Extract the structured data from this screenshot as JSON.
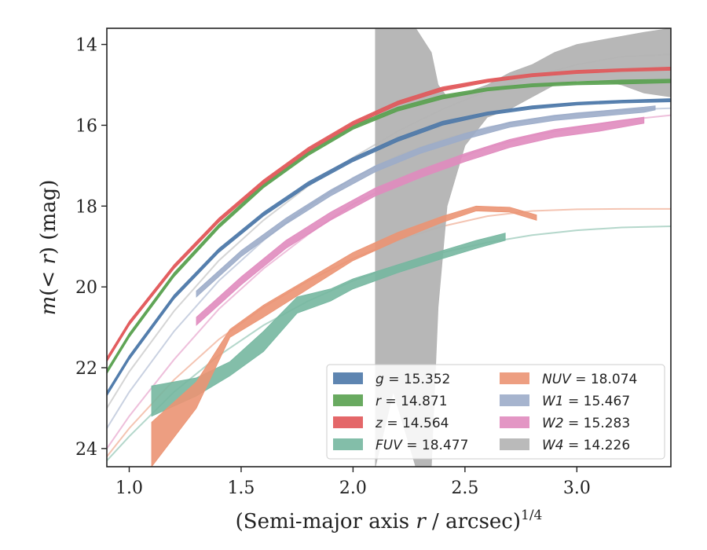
{
  "chart_data": {
    "type": "line",
    "xlabel": "(Semi-major axis r / arcsec)^{1/4}",
    "xlabel_parts": {
      "main": "(Semi-major axis ",
      "var": "r",
      "mid": " / arcsec)",
      "sup": "1/4"
    },
    "ylabel_parts": {
      "m": "m",
      "open": "(",
      "lt": "< ",
      "r": "r",
      "close": ")",
      "unit": " (mag)"
    },
    "xlim": [
      0.9,
      3.42
    ],
    "ylim": [
      24.45,
      13.6
    ],
    "y_inverted": true,
    "xticks": [
      1.0,
      1.5,
      2.0,
      2.5,
      3.0
    ],
    "xtick_labels": [
      "1.0",
      "1.5",
      "2.0",
      "2.5",
      "3.0"
    ],
    "yticks": [
      14,
      16,
      18,
      20,
      22,
      24
    ],
    "ytick_labels": [
      "14",
      "16",
      "18",
      "20",
      "22",
      "24"
    ],
    "grid": false,
    "legend_position": "lower-right",
    "legend_columns": 2,
    "series": [
      {
        "name": "g",
        "legend_label": "g = 15.352",
        "legend_var": "g",
        "legend_value": "15.352",
        "color": "#4C78A8",
        "model": [
          [
            0.9,
            22.65
          ],
          [
            1.0,
            21.75
          ],
          [
            1.2,
            20.25
          ],
          [
            1.4,
            19.1
          ],
          [
            1.6,
            18.2
          ],
          [
            1.8,
            17.45
          ],
          [
            2.0,
            16.85
          ],
          [
            2.2,
            16.35
          ],
          [
            2.4,
            15.95
          ],
          [
            2.6,
            15.7
          ],
          [
            2.8,
            15.55
          ],
          [
            3.0,
            15.45
          ],
          [
            3.2,
            15.4
          ],
          [
            3.42,
            15.37
          ]
        ],
        "band": [
          [
            0.9,
            22.6,
            22.7
          ],
          [
            1.0,
            21.7,
            21.8
          ],
          [
            1.2,
            20.2,
            20.3
          ],
          [
            1.4,
            19.05,
            19.15
          ],
          [
            1.6,
            18.15,
            18.25
          ],
          [
            1.8,
            17.4,
            17.5
          ],
          [
            2.0,
            16.8,
            16.9
          ],
          [
            2.2,
            16.3,
            16.4
          ],
          [
            2.4,
            15.9,
            16.0
          ],
          [
            2.6,
            15.67,
            15.75
          ],
          [
            2.8,
            15.52,
            15.6
          ],
          [
            3.0,
            15.43,
            15.5
          ],
          [
            3.2,
            15.38,
            15.45
          ],
          [
            3.42,
            15.34,
            15.42
          ]
        ]
      },
      {
        "name": "r",
        "legend_label": "r = 14.871",
        "legend_var": "r",
        "legend_value": "14.871",
        "color": "#59A14F",
        "model": [
          [
            0.9,
            22.1
          ],
          [
            1.0,
            21.2
          ],
          [
            1.2,
            19.7
          ],
          [
            1.4,
            18.5
          ],
          [
            1.6,
            17.5
          ],
          [
            1.8,
            16.7
          ],
          [
            2.0,
            16.05
          ],
          [
            2.2,
            15.6
          ],
          [
            2.4,
            15.3
          ],
          [
            2.6,
            15.1
          ],
          [
            2.8,
            15.0
          ],
          [
            3.0,
            14.95
          ],
          [
            3.2,
            14.92
          ],
          [
            3.42,
            14.9
          ]
        ],
        "band": [
          [
            0.9,
            22.05,
            22.15
          ],
          [
            1.0,
            21.15,
            21.25
          ],
          [
            1.2,
            19.65,
            19.75
          ],
          [
            1.4,
            18.45,
            18.55
          ],
          [
            1.6,
            17.45,
            17.55
          ],
          [
            1.8,
            16.65,
            16.75
          ],
          [
            2.0,
            16.0,
            16.1
          ],
          [
            2.2,
            15.55,
            15.65
          ],
          [
            2.4,
            15.25,
            15.35
          ],
          [
            2.6,
            15.07,
            15.15
          ],
          [
            2.8,
            14.97,
            15.05
          ],
          [
            3.0,
            14.92,
            15.0
          ],
          [
            3.2,
            14.88,
            14.98
          ],
          [
            3.42,
            14.86,
            14.95
          ]
        ]
      },
      {
        "name": "z",
        "legend_label": "z = 14.564",
        "legend_var": "z",
        "legend_value": "14.564",
        "color": "#E15759",
        "model": [
          [
            0.9,
            21.8
          ],
          [
            1.0,
            20.9
          ],
          [
            1.2,
            19.5
          ],
          [
            1.4,
            18.35
          ],
          [
            1.6,
            17.4
          ],
          [
            1.8,
            16.6
          ],
          [
            2.0,
            15.95
          ],
          [
            2.2,
            15.45
          ],
          [
            2.4,
            15.1
          ],
          [
            2.6,
            14.9
          ],
          [
            2.8,
            14.75
          ],
          [
            3.0,
            14.67
          ],
          [
            3.2,
            14.62
          ],
          [
            3.42,
            14.6
          ]
        ],
        "band": [
          [
            0.9,
            21.75,
            21.85
          ],
          [
            1.0,
            20.85,
            20.95
          ],
          [
            1.2,
            19.45,
            19.55
          ],
          [
            1.4,
            18.3,
            18.4
          ],
          [
            1.6,
            17.35,
            17.45
          ],
          [
            1.8,
            16.55,
            16.65
          ],
          [
            2.0,
            15.9,
            16.0
          ],
          [
            2.2,
            15.4,
            15.5
          ],
          [
            2.4,
            15.05,
            15.15
          ],
          [
            2.6,
            14.86,
            14.94
          ],
          [
            2.8,
            14.72,
            14.8
          ],
          [
            3.0,
            14.64,
            14.72
          ],
          [
            3.2,
            14.6,
            14.67
          ],
          [
            3.42,
            14.56,
            14.64
          ]
        ]
      },
      {
        "name": "FUV",
        "legend_label": "FUV = 18.477",
        "legend_var": "FUV",
        "legend_value": "18.477",
        "color": "#76B7A0",
        "model": [
          [
            0.9,
            24.3
          ],
          [
            1.0,
            23.7
          ],
          [
            1.2,
            22.6
          ],
          [
            1.4,
            21.7
          ],
          [
            1.6,
            20.95
          ],
          [
            1.8,
            20.35
          ],
          [
            2.0,
            19.85
          ],
          [
            2.2,
            19.45
          ],
          [
            2.4,
            19.15
          ],
          [
            2.6,
            18.9
          ],
          [
            2.8,
            18.72
          ],
          [
            3.0,
            18.6
          ],
          [
            3.2,
            18.53
          ],
          [
            3.42,
            18.5
          ]
        ],
        "band": [
          [
            1.1,
            22.45,
            23.2
          ],
          [
            1.3,
            22.25,
            22.7
          ],
          [
            1.45,
            21.85,
            22.2
          ],
          [
            1.6,
            21.1,
            21.6
          ],
          [
            1.75,
            20.25,
            20.65
          ],
          [
            1.9,
            20.05,
            20.35
          ],
          [
            2.0,
            19.8,
            20.05
          ],
          [
            2.2,
            19.45,
            19.65
          ],
          [
            2.4,
            19.1,
            19.3
          ],
          [
            2.55,
            18.85,
            19.05
          ],
          [
            2.68,
            18.67,
            18.85
          ]
        ]
      },
      {
        "name": "NUV",
        "legend_label": "NUV = 18.074",
        "legend_var": "NUV",
        "legend_value": "18.074",
        "color": "#EB9473",
        "model": [
          [
            0.9,
            24.2
          ],
          [
            1.0,
            23.5
          ],
          [
            1.2,
            22.3
          ],
          [
            1.4,
            21.3
          ],
          [
            1.6,
            20.5
          ],
          [
            1.8,
            19.85
          ],
          [
            2.0,
            19.3
          ],
          [
            2.2,
            18.85
          ],
          [
            2.4,
            18.5
          ],
          [
            2.6,
            18.25
          ],
          [
            2.8,
            18.12
          ],
          [
            3.0,
            18.08
          ],
          [
            3.2,
            18.07
          ],
          [
            3.42,
            18.07
          ]
        ],
        "band": [
          [
            1.1,
            23.35,
            24.45
          ],
          [
            1.3,
            22.35,
            23.0
          ],
          [
            1.45,
            21.05,
            21.25
          ],
          [
            1.6,
            20.45,
            20.75
          ],
          [
            1.8,
            19.8,
            20.05
          ],
          [
            2.0,
            19.15,
            19.35
          ],
          [
            2.2,
            18.65,
            18.85
          ],
          [
            2.4,
            18.25,
            18.4
          ],
          [
            2.55,
            18.0,
            18.12
          ],
          [
            2.7,
            18.03,
            18.15
          ],
          [
            2.82,
            18.22,
            18.35
          ]
        ]
      },
      {
        "name": "W1",
        "legend_label": "W1 = 15.467",
        "legend_var": "W1",
        "legend_value": "15.467",
        "color": "#9CACC9",
        "model": [
          [
            0.9,
            23.5
          ],
          [
            1.0,
            22.6
          ],
          [
            1.2,
            21.1
          ],
          [
            1.4,
            19.85
          ],
          [
            1.6,
            18.85
          ],
          [
            1.8,
            18.0
          ],
          [
            2.0,
            17.3
          ],
          [
            2.2,
            16.75
          ],
          [
            2.4,
            16.35
          ],
          [
            2.6,
            16.05
          ],
          [
            2.8,
            15.85
          ],
          [
            3.0,
            15.7
          ],
          [
            3.2,
            15.62
          ],
          [
            3.42,
            15.58
          ]
        ],
        "band": [
          [
            1.3,
            20.1,
            20.25
          ],
          [
            1.5,
            19.1,
            19.25
          ],
          [
            1.7,
            18.3,
            18.45
          ],
          [
            1.9,
            17.6,
            17.75
          ],
          [
            2.1,
            17.0,
            17.15
          ],
          [
            2.3,
            16.55,
            16.7
          ],
          [
            2.5,
            16.2,
            16.35
          ],
          [
            2.7,
            15.92,
            16.05
          ],
          [
            2.9,
            15.75,
            15.88
          ],
          [
            3.1,
            15.65,
            15.78
          ],
          [
            3.3,
            15.55,
            15.68
          ],
          [
            3.35,
            15.52,
            15.62
          ]
        ]
      },
      {
        "name": "W2",
        "legend_label": "W2 = 15.283",
        "legend_var": "W2",
        "legend_value": "15.283",
        "color": "#E08BBE",
        "model": [
          [
            0.9,
            24.0
          ],
          [
            1.0,
            23.2
          ],
          [
            1.2,
            21.8
          ],
          [
            1.4,
            20.55
          ],
          [
            1.6,
            19.55
          ],
          [
            1.8,
            18.7
          ],
          [
            2.0,
            17.95
          ],
          [
            2.2,
            17.4
          ],
          [
            2.4,
            16.95
          ],
          [
            2.6,
            16.55
          ],
          [
            2.8,
            16.25
          ],
          [
            3.0,
            16.05
          ],
          [
            3.2,
            15.88
          ],
          [
            3.42,
            15.75
          ]
        ],
        "band": [
          [
            1.3,
            20.75,
            20.95
          ],
          [
            1.5,
            19.75,
            19.95
          ],
          [
            1.7,
            18.85,
            19.05
          ],
          [
            1.9,
            18.15,
            18.35
          ],
          [
            2.1,
            17.55,
            17.75
          ],
          [
            2.3,
            17.1,
            17.3
          ],
          [
            2.5,
            16.7,
            16.9
          ],
          [
            2.7,
            16.35,
            16.55
          ],
          [
            2.9,
            16.1,
            16.3
          ],
          [
            3.1,
            15.95,
            16.15
          ],
          [
            3.3,
            15.8,
            15.95
          ]
        ]
      },
      {
        "name": "W4",
        "legend_label": "W4 = 14.226",
        "legend_var": "W4",
        "legend_value": "14.226",
        "color": "#B3B3B3",
        "model": [
          [
            0.9,
            23.0
          ],
          [
            1.0,
            22.1
          ],
          [
            1.2,
            20.6
          ],
          [
            1.4,
            19.35
          ],
          [
            1.6,
            18.35
          ],
          [
            1.8,
            17.5
          ],
          [
            2.0,
            16.8
          ],
          [
            2.2,
            16.15
          ],
          [
            2.4,
            15.6
          ],
          [
            2.6,
            15.15
          ],
          [
            2.8,
            14.8
          ],
          [
            3.0,
            14.5
          ],
          [
            3.2,
            14.3
          ],
          [
            3.42,
            14.25
          ]
        ],
        "band": [
          [
            2.1,
            13.6,
            24.45
          ],
          [
            2.18,
            13.6,
            22.6
          ],
          [
            2.28,
            13.6,
            24.45
          ],
          [
            2.35,
            14.2,
            24.45
          ],
          [
            2.38,
            15.0,
            20.5
          ],
          [
            2.42,
            15.3,
            18.0
          ],
          [
            2.5,
            15.2,
            16.5
          ],
          [
            2.6,
            15.0,
            15.8
          ],
          [
            2.7,
            14.7,
            15.6
          ],
          [
            2.8,
            14.5,
            15.3
          ],
          [
            2.9,
            14.2,
            15.0
          ],
          [
            3.0,
            14.0,
            14.9
          ],
          [
            3.1,
            13.9,
            14.9
          ],
          [
            3.2,
            13.8,
            15.0
          ],
          [
            3.3,
            13.7,
            15.2
          ],
          [
            3.42,
            13.6,
            15.3
          ]
        ]
      }
    ]
  }
}
